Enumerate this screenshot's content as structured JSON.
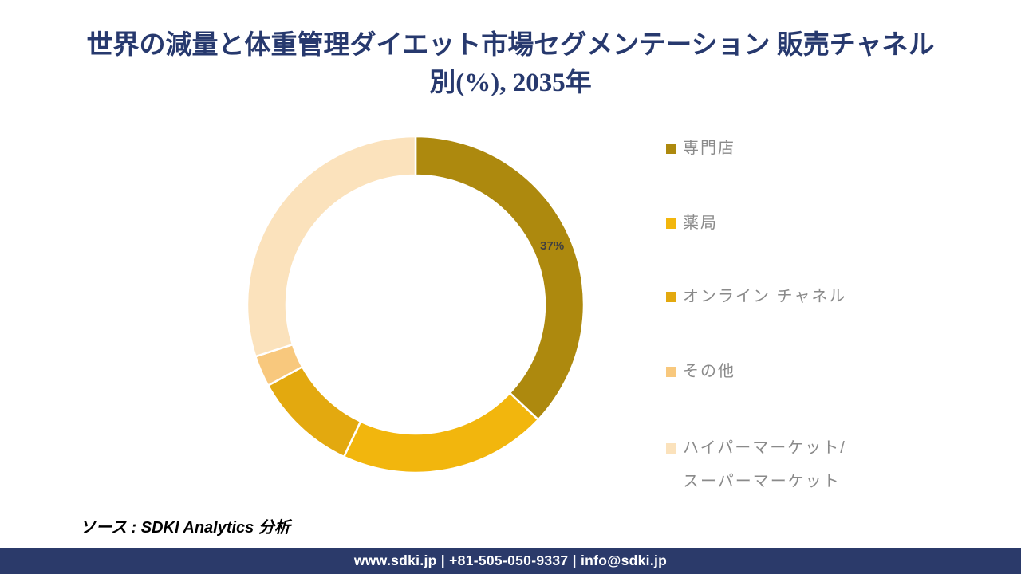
{
  "title": {
    "lines": [
      "世界の減量と体重管理ダイエット市場セグメンテーション 販売チャネル",
      "別(%), 2035年"
    ],
    "color": "#27396E"
  },
  "chart_data": {
    "type": "pie",
    "donut": true,
    "title": "世界の減量と体重管理ダイエット市場セグメンテーション 販売チャネル別(%), 2035年",
    "unit": "%",
    "start_angle_deg": 0,
    "direction": "clockwise",
    "inner_radius_ratio": 0.77,
    "legend_position": "right",
    "data_label_color": "#404040",
    "segments": [
      {
        "label": "専門店",
        "value": 37,
        "color": "#AD890E",
        "data_label": "37%",
        "legend_lines": [
          "専門店"
        ]
      },
      {
        "label": "薬局",
        "value": 20,
        "color": "#F2B60D",
        "data_label": "",
        "legend_lines": [
          "薬局"
        ]
      },
      {
        "label": "オンライン チャネル",
        "value": 10,
        "color": "#E3A90F",
        "data_label": "",
        "legend_lines": [
          "オンライン チャネル"
        ]
      },
      {
        "label": "その他",
        "value": 3,
        "color": "#F8C87D",
        "data_label": "",
        "legend_lines": [
          "その他"
        ]
      },
      {
        "label": "ハイパーマーケット/スーパーマーケット",
        "value": 30,
        "color": "#FBE2BC",
        "data_label": "",
        "legend_lines": [
          "ハイパーマーケット/",
          "スーパーマーケット"
        ]
      }
    ]
  },
  "source": {
    "text": "ソース : SDKI Analytics 分析"
  },
  "footer": {
    "text": "www.sdki.jp | +81-505-050-9337 | info@sdki.jp",
    "background": "#2B3A6A"
  }
}
